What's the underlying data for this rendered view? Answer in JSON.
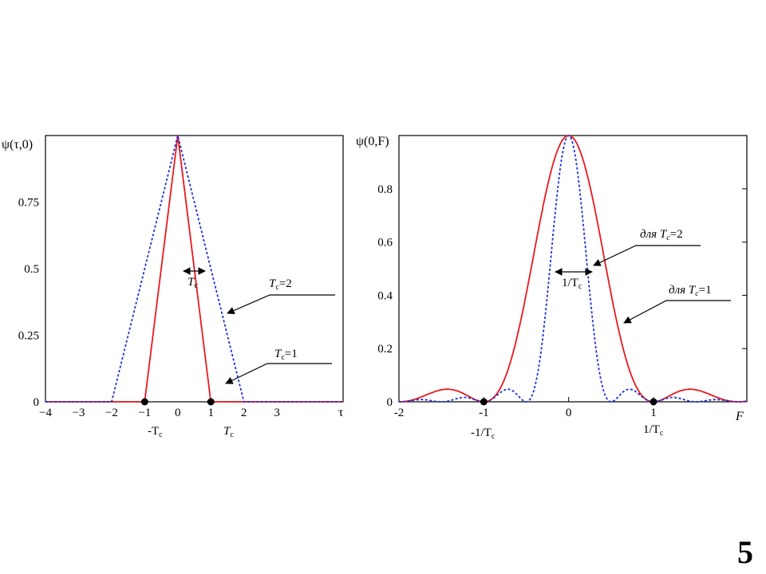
{
  "slide_number": "5",
  "chart_data": [
    {
      "type": "line",
      "ylabel": "ψ(τ,0)",
      "xlabel": "τ",
      "xlim": [
        -4,
        5
      ],
      "ylim": [
        0,
        1
      ],
      "x_ticks": [
        "−4",
        "−3",
        "−2",
        "−1",
        "0",
        "1",
        "2",
        "3"
      ],
      "x_tick_values": [
        -4,
        -3,
        -2,
        -1,
        0,
        1,
        2,
        3
      ],
      "y_ticks": [
        "0",
        "0.25",
        "0.5",
        "0.75"
      ],
      "y_tick_values": [
        0,
        0.25,
        0.5,
        0.75
      ],
      "grid": false,
      "series": [
        {
          "name": "Tc=1",
          "color": "#e8191f",
          "dash": "solid",
          "x": [
            -5,
            -1,
            0,
            1,
            5
          ],
          "y": [
            0,
            0,
            1,
            0,
            0
          ]
        },
        {
          "name": "Tc=2",
          "color": "#1f2fd6",
          "dash": "dotted",
          "x": [
            -5,
            -2,
            0,
            2,
            5
          ],
          "y": [
            0,
            0,
            1,
            0,
            0
          ]
        }
      ],
      "markers": [
        {
          "x": -1,
          "y": 0
        },
        {
          "x": 1,
          "y": 0
        }
      ],
      "below_axis_labels": [
        {
          "x": -1,
          "main": "-T",
          "sub": "c"
        },
        {
          "x": 1,
          "main": "T",
          "sub": "c"
        }
      ],
      "annotations": {
        "width": {
          "main": "T",
          "sub": "c"
        },
        "tc2": {
          "main": "T",
          "sub": "c",
          "rest": "=2"
        },
        "tc1": {
          "main": "T",
          "sub": "c",
          "rest": "=1"
        }
      }
    },
    {
      "type": "line",
      "ylabel": "ψ(0,F)",
      "xlabel": "F",
      "xlim": [
        -2,
        2.1
      ],
      "ylim": [
        0,
        1
      ],
      "x_ticks": [
        "-2",
        "-1",
        "0",
        "1"
      ],
      "x_tick_values": [
        -2,
        -1,
        0,
        1
      ],
      "y_ticks": [
        "0",
        "0.2",
        "0.4",
        "0.6",
        "0.8"
      ],
      "y_tick_values": [
        0,
        0.2,
        0.4,
        0.6,
        0.8
      ],
      "grid": false,
      "series": [
        {
          "name": "для Tc=1",
          "color": "#e8191f",
          "dash": "solid",
          "formula": "sinc2",
          "Tc": 1
        },
        {
          "name": "для Tc=2",
          "color": "#1f2fd6",
          "dash": "dotted",
          "formula": "sinc2",
          "Tc": 2
        }
      ],
      "markers": [
        {
          "x": -1,
          "y": 0
        },
        {
          "x": 1,
          "y": 0
        }
      ],
      "below_axis_labels": [
        {
          "x": -1,
          "main": "-1/T",
          "sub": "c"
        },
        {
          "x": 1,
          "main": "1/T",
          "sub": "c"
        }
      ],
      "annotations": {
        "width": {
          "main": "1/T",
          "sub": "c"
        },
        "tc2": {
          "prefix": "для ",
          "main": "T",
          "sub": "c",
          "rest": "=2"
        },
        "tc1": {
          "prefix": "для ",
          "main": "T",
          "sub": "c",
          "rest": "=1"
        }
      }
    }
  ]
}
